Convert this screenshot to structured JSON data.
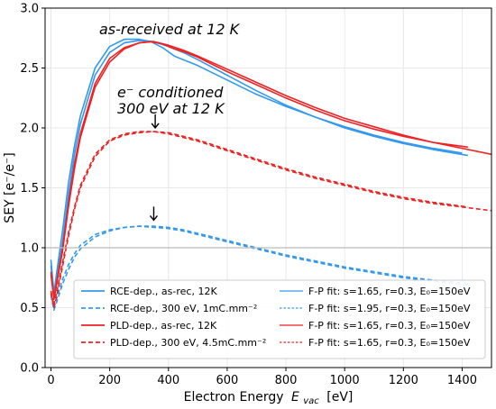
{
  "chart_data": {
    "type": "line",
    "xlabel": "Electron Energy",
    "xlabel_var": "E",
    "xlabel_sub": "vac",
    "xlabel_unit": "[eV]",
    "ylabel": "SEY  [e⁻/e⁻]",
    "xlim": [
      -20,
      1500
    ],
    "ylim": [
      0.0,
      3.0
    ],
    "xticks": [
      "0",
      "200",
      "400",
      "600",
      "800",
      "1000",
      "1200",
      "1400"
    ],
    "xtick_values": [
      0,
      200,
      400,
      600,
      800,
      1000,
      1200,
      1400
    ],
    "yticks": [
      "0.0",
      "0.5",
      "1.0",
      "1.5",
      "2.0",
      "2.5",
      "3.0"
    ],
    "ytick_values": [
      0.0,
      0.5,
      1.0,
      1.5,
      2.0,
      2.5,
      3.0
    ],
    "grid": true,
    "reference_line": 1.0,
    "legend_position": "lower",
    "annotations": {
      "as_received": "as-received at 12 K",
      "conditioned_line1": "e⁻ conditioned",
      "conditioned_line2": "300 eV at 12 K"
    },
    "arrows": [
      {
        "x": 355,
        "y_tip": 1.97
      },
      {
        "x": 350,
        "y_tip": 1.2
      }
    ],
    "colors": {
      "blue": "#3399ee",
      "red": "#ee2222",
      "axis_line": "#bbbbbb"
    },
    "legend": [
      {
        "label": "RCE-dep., as-rec, 12K",
        "color": "#3399ee",
        "style": "solid"
      },
      {
        "label": "RCE-dep., 300 eV, 1mC.mm⁻²",
        "color": "#3399ee",
        "style": "dashed"
      },
      {
        "label": "PLD-dep., as-rec, 12K",
        "color": "#ee2222",
        "style": "solid"
      },
      {
        "label": "PLD-dep., 300 eV, 4.5mC.mm⁻²",
        "color": "#ee2222",
        "style": "dashed"
      },
      {
        "label": "F-P fit: s=1.65, r=0.3, E₀=150eV",
        "color": "#3399ee",
        "style": "solid-thin"
      },
      {
        "label": "F-P fit: s=1.95, r=0.3, E₀=150eV",
        "color": "#3399ee",
        "style": "dotted"
      },
      {
        "label": "F-P fit: s=1.65, r=0.3, E₀=150eV",
        "color": "#ee2222",
        "style": "solid-thin"
      },
      {
        "label": "F-P fit: s=1.65, r=0.3, E₀=150eV",
        "color": "#ee2222",
        "style": "dotted"
      }
    ],
    "series": [
      {
        "color": "#3399ee",
        "style": "solid",
        "x": [
          0,
          10,
          20,
          40,
          60,
          80,
          100,
          150,
          200,
          250,
          300,
          340,
          380,
          420,
          460,
          500,
          600,
          700,
          800,
          900,
          1000,
          1100,
          1200,
          1300,
          1420
        ],
        "y": [
          0.9,
          0.62,
          0.8,
          1.15,
          1.55,
          1.85,
          2.1,
          2.5,
          2.68,
          2.74,
          2.74,
          2.72,
          2.67,
          2.6,
          2.56,
          2.52,
          2.4,
          2.28,
          2.18,
          2.09,
          2.0,
          1.93,
          1.87,
          1.82,
          1.77
        ]
      },
      {
        "color": "#3399ee",
        "style": "solid",
        "x": [
          0,
          10,
          20,
          40,
          60,
          80,
          100,
          150,
          200,
          250,
          300,
          350,
          400,
          450,
          500,
          600,
          700,
          800,
          900,
          1000,
          1100,
          1200,
          1300,
          1400
        ],
        "y": [
          0.85,
          0.6,
          0.75,
          1.05,
          1.45,
          1.78,
          2.03,
          2.44,
          2.63,
          2.71,
          2.73,
          2.72,
          2.68,
          2.63,
          2.57,
          2.44,
          2.31,
          2.19,
          2.09,
          2.01,
          1.94,
          1.88,
          1.83,
          1.79
        ]
      },
      {
        "color": "#ee2222",
        "style": "solid",
        "x": [
          0,
          10,
          20,
          40,
          60,
          80,
          100,
          150,
          200,
          250,
          300,
          340,
          380,
          420,
          460,
          500,
          600,
          700,
          800,
          900,
          1000,
          1100,
          1200,
          1300,
          1420
        ],
        "y": [
          0.8,
          0.58,
          0.72,
          1.0,
          1.38,
          1.7,
          1.95,
          2.37,
          2.58,
          2.67,
          2.71,
          2.72,
          2.7,
          2.66,
          2.63,
          2.59,
          2.47,
          2.36,
          2.25,
          2.15,
          2.06,
          1.99,
          1.93,
          1.88,
          1.84
        ]
      },
      {
        "color": "#ee2222",
        "style": "solid",
        "x": [
          0,
          10,
          20,
          40,
          60,
          80,
          100,
          150,
          200,
          250,
          300,
          350,
          400,
          450,
          500,
          600,
          700,
          800,
          900,
          1000,
          1100,
          1200,
          1300,
          1400,
          1500
        ],
        "y": [
          0.78,
          0.57,
          0.7,
          0.98,
          1.35,
          1.66,
          1.92,
          2.34,
          2.55,
          2.66,
          2.71,
          2.72,
          2.69,
          2.65,
          2.6,
          2.49,
          2.38,
          2.27,
          2.17,
          2.08,
          2.01,
          1.94,
          1.88,
          1.83,
          1.78
        ]
      },
      {
        "color": "#3399ee",
        "style": "dashed",
        "x": [
          0,
          10,
          20,
          40,
          60,
          80,
          100,
          150,
          200,
          250,
          300,
          350,
          400,
          450,
          500,
          600,
          700,
          800,
          900,
          1000,
          1100,
          1200,
          1300,
          1420
        ],
        "y": [
          0.6,
          0.48,
          0.55,
          0.7,
          0.82,
          0.92,
          0.99,
          1.09,
          1.14,
          1.17,
          1.18,
          1.18,
          1.17,
          1.15,
          1.12,
          1.06,
          1.0,
          0.94,
          0.89,
          0.84,
          0.8,
          0.76,
          0.73,
          0.7
        ]
      },
      {
        "color": "#3399ee",
        "style": "dashed",
        "x": [
          0,
          10,
          20,
          40,
          60,
          80,
          100,
          150,
          200,
          250,
          300,
          350,
          400,
          450,
          500,
          600,
          700,
          800,
          900,
          1000,
          1100,
          1200,
          1300,
          1420
        ],
        "y": [
          0.62,
          0.5,
          0.58,
          0.74,
          0.86,
          0.95,
          1.02,
          1.11,
          1.15,
          1.17,
          1.18,
          1.17,
          1.16,
          1.14,
          1.11,
          1.05,
          0.99,
          0.93,
          0.88,
          0.83,
          0.79,
          0.75,
          0.72,
          0.69
        ]
      },
      {
        "color": "#ee2222",
        "style": "dashed",
        "x": [
          0,
          10,
          20,
          40,
          60,
          80,
          100,
          150,
          200,
          250,
          300,
          350,
          400,
          450,
          500,
          600,
          700,
          800,
          900,
          1000,
          1100,
          1200,
          1300,
          1420
        ],
        "y": [
          0.62,
          0.5,
          0.6,
          0.85,
          1.1,
          1.32,
          1.5,
          1.76,
          1.89,
          1.94,
          1.96,
          1.97,
          1.96,
          1.93,
          1.9,
          1.82,
          1.74,
          1.66,
          1.59,
          1.53,
          1.47,
          1.42,
          1.38,
          1.34
        ]
      },
      {
        "color": "#ee2222",
        "style": "dashed",
        "x": [
          0,
          10,
          20,
          40,
          60,
          80,
          100,
          150,
          200,
          250,
          300,
          350,
          400,
          450,
          500,
          600,
          700,
          800,
          900,
          1000,
          1100,
          1200,
          1300,
          1500
        ],
        "y": [
          0.64,
          0.52,
          0.63,
          0.88,
          1.13,
          1.34,
          1.52,
          1.78,
          1.9,
          1.95,
          1.97,
          1.97,
          1.95,
          1.92,
          1.89,
          1.81,
          1.73,
          1.65,
          1.58,
          1.52,
          1.46,
          1.41,
          1.37,
          1.31
        ]
      }
    ]
  }
}
